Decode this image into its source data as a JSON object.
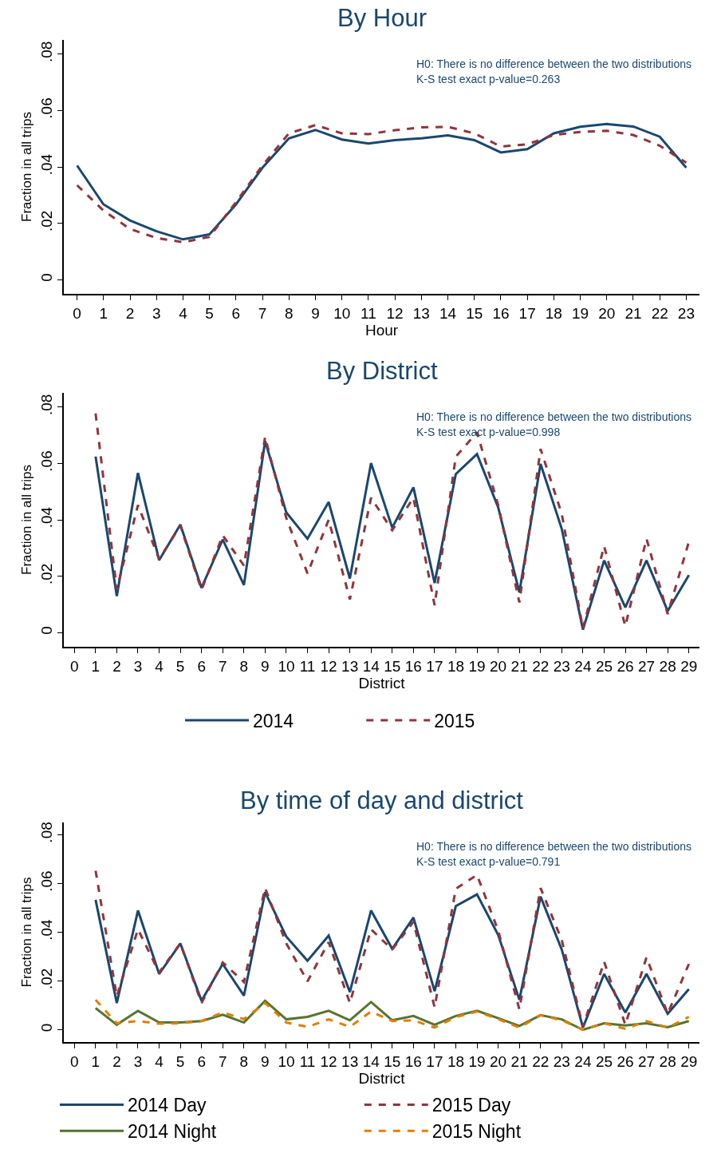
{
  "chart_data": [
    {
      "type": "line",
      "title": "By Hour",
      "xlabel": "Hour",
      "ylabel": "Fraction in all trips",
      "x": [
        0,
        1,
        2,
        3,
        4,
        5,
        6,
        7,
        8,
        9,
        10,
        11,
        12,
        13,
        14,
        15,
        16,
        17,
        18,
        19,
        20,
        21,
        22,
        23
      ],
      "series": [
        {
          "color": "#1a476f",
          "line_style": "solid",
          "values": [
            0.0405,
            0.0267,
            0.021,
            0.0172,
            0.0143,
            0.0161,
            0.0267,
            0.0397,
            0.0501,
            0.0531,
            0.0497,
            0.0483,
            0.0495,
            0.0501,
            0.0512,
            0.0495,
            0.0451,
            0.0463,
            0.0519,
            0.0542,
            0.0552,
            0.0543,
            0.0507,
            0.0397
          ]
        },
        {
          "color": "#90353b",
          "line_style": "dashed",
          "values": [
            0.0335,
            0.0245,
            0.018,
            0.0148,
            0.0133,
            0.0152,
            0.0275,
            0.0405,
            0.0519,
            0.0548,
            0.0519,
            0.0516,
            0.053,
            0.054,
            0.0542,
            0.0519,
            0.0472,
            0.048,
            0.0513,
            0.0524,
            0.0528,
            0.0513,
            0.0475,
            0.0415
          ]
        }
      ],
      "xlim": [
        -0.5,
        23.5
      ],
      "xticks": [
        0,
        1,
        2,
        3,
        4,
        5,
        6,
        7,
        8,
        9,
        10,
        11,
        12,
        13,
        14,
        15,
        16,
        17,
        18,
        19,
        20,
        21,
        22,
        23
      ],
      "ylim": [
        -0.005,
        0.085
      ],
      "yticks": [
        {
          "value": 0,
          "label": "0"
        },
        {
          "value": 0.02,
          "label": ".02"
        },
        {
          "value": 0.04,
          "label": ".04"
        },
        {
          "value": 0.06,
          "label": ".06"
        },
        {
          "value": 0.08,
          "label": ".08"
        }
      ],
      "annotations": [
        "H0: There is no difference between the two distributions",
        "K-S test exact p-value=0.263"
      ],
      "legend": false
    },
    {
      "type": "line",
      "title": "By District",
      "xlabel": "District",
      "ylabel": "Fraction in all trips",
      "x": [
        1,
        2,
        3,
        4,
        5,
        6,
        7,
        8,
        9,
        10,
        11,
        12,
        13,
        14,
        15,
        16,
        17,
        18,
        19,
        20,
        21,
        22,
        23,
        24,
        25,
        26,
        27,
        28,
        29
      ],
      "series": [
        {
          "name": "2014",
          "color": "#1a476f",
          "line_style": "solid",
          "values": [
            0.0624,
            0.013,
            0.0566,
            0.0257,
            0.0383,
            0.0159,
            0.033,
            0.0169,
            0.0679,
            0.0426,
            0.0333,
            0.0463,
            0.0192,
            0.0601,
            0.0372,
            0.0515,
            0.0176,
            0.0562,
            0.0633,
            0.0444,
            0.0143,
            0.0598,
            0.0368,
            0.0011,
            0.0256,
            0.009,
            0.0256,
            0.0077,
            0.0204
          ]
        },
        {
          "name": "2015",
          "color": "#90353b",
          "line_style": "dashed",
          "values": [
            0.0777,
            0.0153,
            0.0452,
            0.0261,
            0.0379,
            0.0152,
            0.0345,
            0.0238,
            0.0693,
            0.0406,
            0.021,
            0.04,
            0.0118,
            0.0478,
            0.0363,
            0.0478,
            0.0097,
            0.0624,
            0.071,
            0.0452,
            0.0107,
            0.0651,
            0.0421,
            0.0015,
            0.0307,
            0.0023,
            0.0333,
            0.0066,
            0.0322
          ]
        }
      ],
      "xlim": [
        -0.5,
        29.5
      ],
      "xticks": [
        0,
        1,
        2,
        3,
        4,
        5,
        6,
        7,
        8,
        9,
        10,
        11,
        12,
        13,
        14,
        15,
        16,
        17,
        18,
        19,
        20,
        21,
        22,
        23,
        24,
        25,
        26,
        27,
        28,
        29
      ],
      "ylim": [
        -0.005,
        0.085
      ],
      "yticks": [
        {
          "value": 0,
          "label": "0"
        },
        {
          "value": 0.02,
          "label": ".02"
        },
        {
          "value": 0.04,
          "label": ".04"
        },
        {
          "value": 0.06,
          "label": ".06"
        },
        {
          "value": 0.08,
          "label": ".08"
        }
      ],
      "annotations": [
        "H0: There is no difference between the two distributions",
        "K-S test exact p-value=0.998"
      ],
      "legend": "bottom"
    },
    {
      "type": "line",
      "title": "By time of day and district",
      "xlabel": "District",
      "ylabel": "Fraction in all trips",
      "x": [
        1,
        2,
        3,
        4,
        5,
        6,
        7,
        8,
        9,
        10,
        11,
        12,
        13,
        14,
        15,
        16,
        17,
        18,
        19,
        20,
        21,
        22,
        23,
        24,
        25,
        26,
        27,
        28,
        29
      ],
      "series": [
        {
          "name": "2014 Day",
          "color": "#1a476f",
          "line_style": "solid",
          "values": [
            0.0533,
            0.011,
            0.0489,
            0.0229,
            0.0354,
            0.0119,
            0.027,
            0.014,
            0.0564,
            0.0382,
            0.0283,
            0.0386,
            0.0155,
            0.0489,
            0.0332,
            0.046,
            0.0158,
            0.0507,
            0.0555,
            0.0389,
            0.0123,
            0.0546,
            0.0329,
            0.0009,
            0.0229,
            0.0071,
            0.0229,
            0.0066,
            0.0167
          ]
        },
        {
          "name": "2015 Day",
          "color": "#90353b",
          "line_style": "dashed",
          "values": [
            0.0652,
            0.0137,
            0.0412,
            0.0235,
            0.0354,
            0.011,
            0.0276,
            0.0196,
            0.0581,
            0.0354,
            0.0199,
            0.0359,
            0.011,
            0.0412,
            0.0329,
            0.0443,
            0.0092,
            0.0578,
            0.0635,
            0.0407,
            0.0084,
            0.0581,
            0.0368,
            0.0012,
            0.0279,
            0.0021,
            0.0297,
            0.0066,
            0.027
          ]
        },
        {
          "name": "2014 Night",
          "color": "#55752f",
          "line_style": "solid",
          "values": [
            0.0089,
            0.0021,
            0.0078,
            0.003,
            0.003,
            0.0036,
            0.0062,
            0.003,
            0.0119,
            0.0043,
            0.0053,
            0.0078,
            0.0039,
            0.0114,
            0.0039,
            0.0057,
            0.0021,
            0.0057,
            0.0078,
            0.0048,
            0.0016,
            0.006,
            0.0043,
            0,
            0.0027,
            0.0018,
            0.0027,
            0.0011,
            0.0036
          ]
        },
        {
          "name": "2015 Night",
          "color": "#e37e00",
          "line_style": "dashed",
          "values": [
            0.0123,
            0.0027,
            0.0036,
            0.0025,
            0.0027,
            0.0036,
            0.0071,
            0.0044,
            0.011,
            0.003,
            0.0012,
            0.0043,
            0.0012,
            0.0075,
            0.0036,
            0.0039,
            0.0009,
            0.0052,
            0.0075,
            0.0044,
            0.0009,
            0.006,
            0.0039,
            0,
            0.0027,
            0.0004,
            0.0036,
            0.0009,
            0.0053
          ]
        }
      ],
      "xlim": [
        -0.5,
        29.5
      ],
      "xticks": [
        0,
        1,
        2,
        3,
        4,
        5,
        6,
        7,
        8,
        9,
        10,
        11,
        12,
        13,
        14,
        15,
        16,
        17,
        18,
        19,
        20,
        21,
        22,
        23,
        24,
        25,
        26,
        27,
        28,
        29
      ],
      "ylim": [
        -0.005,
        0.085
      ],
      "yticks": [
        {
          "value": 0,
          "label": "0"
        },
        {
          "value": 0.02,
          "label": ".02"
        },
        {
          "value": 0.04,
          "label": ".04"
        },
        {
          "value": 0.06,
          "label": ".06"
        },
        {
          "value": 0.08,
          "label": ".08"
        }
      ],
      "annotations": [
        "H0: There is no difference between the two distributions",
        "K-S test exact p-value=0.791"
      ],
      "legend": "bottom"
    }
  ]
}
